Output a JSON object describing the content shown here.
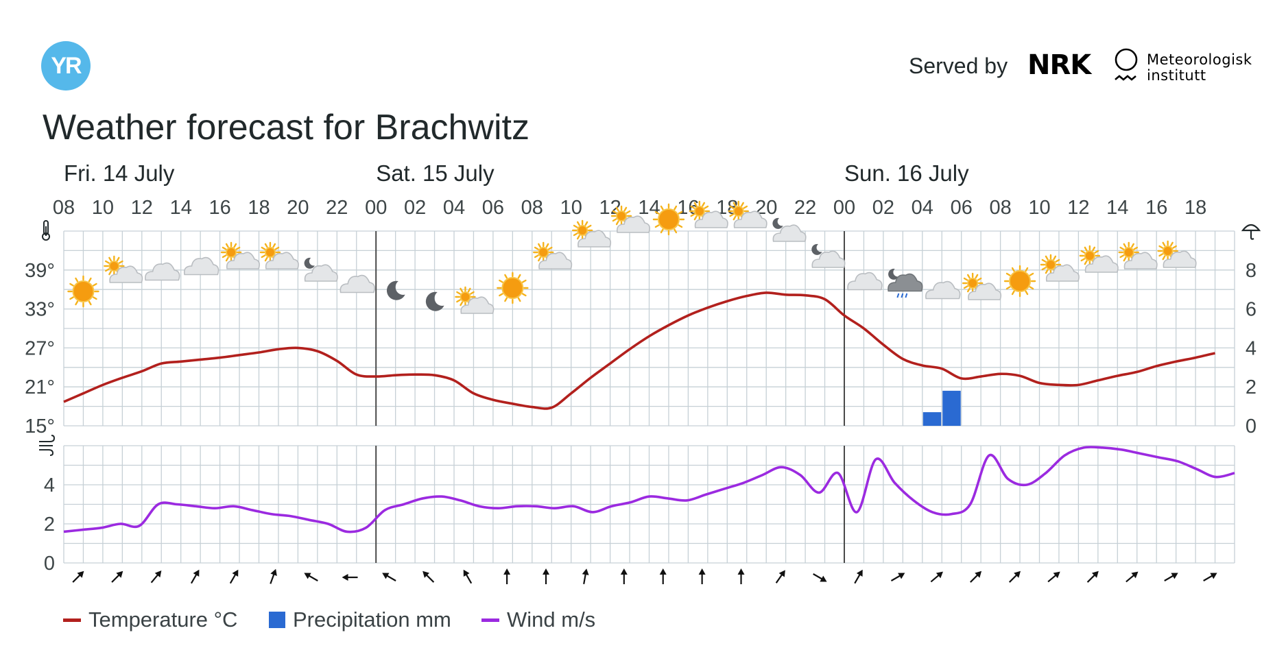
{
  "header": {
    "logo_text": "YR",
    "served_by": "Served by",
    "nrk": "NRK",
    "met_line1": "Meteorologisk",
    "met_line2": "institutt",
    "title": "Weather forecast for Brachwitz"
  },
  "legend": {
    "temperature": "Temperature °C",
    "precipitation": "Precipitation mm",
    "wind": "Wind m/s"
  },
  "colors": {
    "temperature": "#b2201d",
    "precipitation": "#2a6ad2",
    "wind": "#9b2ae0",
    "grid": "#c6d0d6",
    "divider": "#4a4a4a"
  },
  "chart_data": [
    {
      "type": "line",
      "panel": "temperature-precipitation",
      "title": "",
      "x_labels": [
        "08",
        "10",
        "12",
        "14",
        "16",
        "18",
        "20",
        "22",
        "00",
        "02",
        "04",
        "06",
        "08",
        "10",
        "12",
        "14",
        "16",
        "18",
        "20",
        "22",
        "00",
        "02",
        "04",
        "06",
        "08",
        "10",
        "12",
        "14",
        "16",
        "18"
      ],
      "days": [
        {
          "label": "Fri. 14 July",
          "start_index": 0
        },
        {
          "label": "Sat. 15 July",
          "start_index": 16
        },
        {
          "label": "Sun. 16 July",
          "start_index": 40
        }
      ],
      "x": [
        0,
        1,
        2,
        3,
        4,
        5,
        6,
        7,
        8,
        9,
        10,
        11,
        12,
        13,
        14,
        15,
        16,
        17,
        18,
        19,
        20,
        21,
        22,
        23,
        24,
        25,
        26,
        27,
        28,
        29,
        30,
        31,
        32,
        33,
        34,
        35,
        36,
        37,
        38,
        39,
        40,
        41,
        42,
        43,
        44,
        45,
        46,
        47,
        48,
        49,
        50,
        51,
        52,
        53,
        54,
        55,
        56,
        57,
        58,
        59
      ],
      "series": [
        {
          "name": "Temperature °C",
          "axis": "left",
          "values": [
            18.7,
            20.0,
            21.3,
            22.4,
            23.4,
            24.6,
            24.9,
            25.2,
            25.5,
            25.9,
            26.3,
            26.8,
            27.0,
            26.5,
            25.0,
            22.9,
            22.6,
            22.8,
            22.9,
            22.8,
            22.0,
            20.0,
            19.0,
            18.4,
            17.9,
            17.8,
            20.0,
            22.4,
            24.6,
            26.8,
            28.8,
            30.5,
            32.0,
            33.2,
            34.2,
            35.0,
            35.5,
            35.2,
            35.1,
            34.5,
            32.0,
            30.0,
            27.5,
            25.3,
            24.3,
            23.8,
            22.3,
            22.6,
            23.0,
            22.7,
            21.6,
            21.3,
            21.3,
            22.0,
            22.7,
            23.3,
            24.2,
            24.9,
            25.5,
            26.2
          ]
        },
        {
          "name": "Precipitation mm",
          "axis": "right",
          "type": "bar",
          "values": [
            0,
            0,
            0,
            0,
            0,
            0,
            0,
            0,
            0,
            0,
            0,
            0,
            0,
            0,
            0,
            0,
            0,
            0,
            0,
            0,
            0,
            0,
            0,
            0,
            0,
            0,
            0,
            0,
            0,
            0,
            0,
            0,
            0,
            0,
            0,
            0,
            0,
            0,
            0,
            0,
            0,
            0,
            0,
            0,
            0.7,
            1.8,
            0,
            0,
            0,
            0,
            0,
            0,
            0,
            0,
            0,
            0,
            0,
            0,
            0,
            0
          ]
        }
      ],
      "y_left": {
        "ticks": [
          "15°",
          "21°",
          "27°",
          "33°",
          "39°"
        ],
        "ylim": [
          15,
          45
        ]
      },
      "y_right": {
        "ticks": [
          "0",
          "2",
          "4",
          "6",
          "8"
        ],
        "ylim": [
          0,
          10
        ]
      },
      "grid": true,
      "weather_icons": [
        "sun",
        "sun-cloud",
        "cloud",
        "cloud",
        "sun-cloud",
        "sun-cloud",
        "moon-cloud",
        "cloud",
        "moon",
        "moon",
        "sun-cloud",
        "sun",
        "sun-cloud",
        "sun-cloud",
        "sun-cloud",
        "sun",
        "sun-cloud",
        "sun-cloud",
        "moon-cloud",
        "moon-cloud",
        "cloud",
        "moon-rain",
        "cloud",
        "sun-cloud",
        "sun",
        "sun-cloud",
        "sun-cloud",
        "sun-cloud",
        "sun-cloud"
      ]
    },
    {
      "type": "line",
      "panel": "wind",
      "title": "",
      "series": [
        {
          "name": "Wind m/s",
          "values": [
            1.6,
            1.7,
            1.8,
            2.0,
            1.9,
            3.0,
            3.0,
            2.9,
            2.8,
            2.9,
            2.7,
            2.5,
            2.4,
            2.2,
            2.0,
            1.6,
            1.8,
            2.7,
            3.0,
            3.3,
            3.4,
            3.2,
            2.9,
            2.8,
            2.9,
            2.9,
            2.8,
            2.9,
            2.6,
            2.9,
            3.1,
            3.4,
            3.3,
            3.2,
            3.5,
            3.8,
            4.1,
            4.5,
            4.9,
            4.5,
            3.6,
            4.6,
            2.6,
            5.3,
            4.1,
            3.2,
            2.6,
            2.5,
            3.0,
            5.5,
            4.3,
            4.0,
            4.6,
            5.5,
            5.9,
            5.9,
            5.8,
            5.6,
            5.4,
            5.2,
            4.8,
            4.4,
            4.6
          ]
        }
      ],
      "y": {
        "ticks": [
          "0",
          "2",
          "4"
        ],
        "ylim": [
          0,
          6
        ]
      },
      "grid": true,
      "wind_direction_deg": [
        45,
        45,
        40,
        30,
        30,
        20,
        -60,
        -90,
        -60,
        -45,
        -30,
        0,
        0,
        10,
        0,
        0,
        0,
        0,
        35,
        120,
        30,
        60,
        50,
        45,
        45,
        50,
        45,
        50,
        60,
        60
      ]
    }
  ]
}
